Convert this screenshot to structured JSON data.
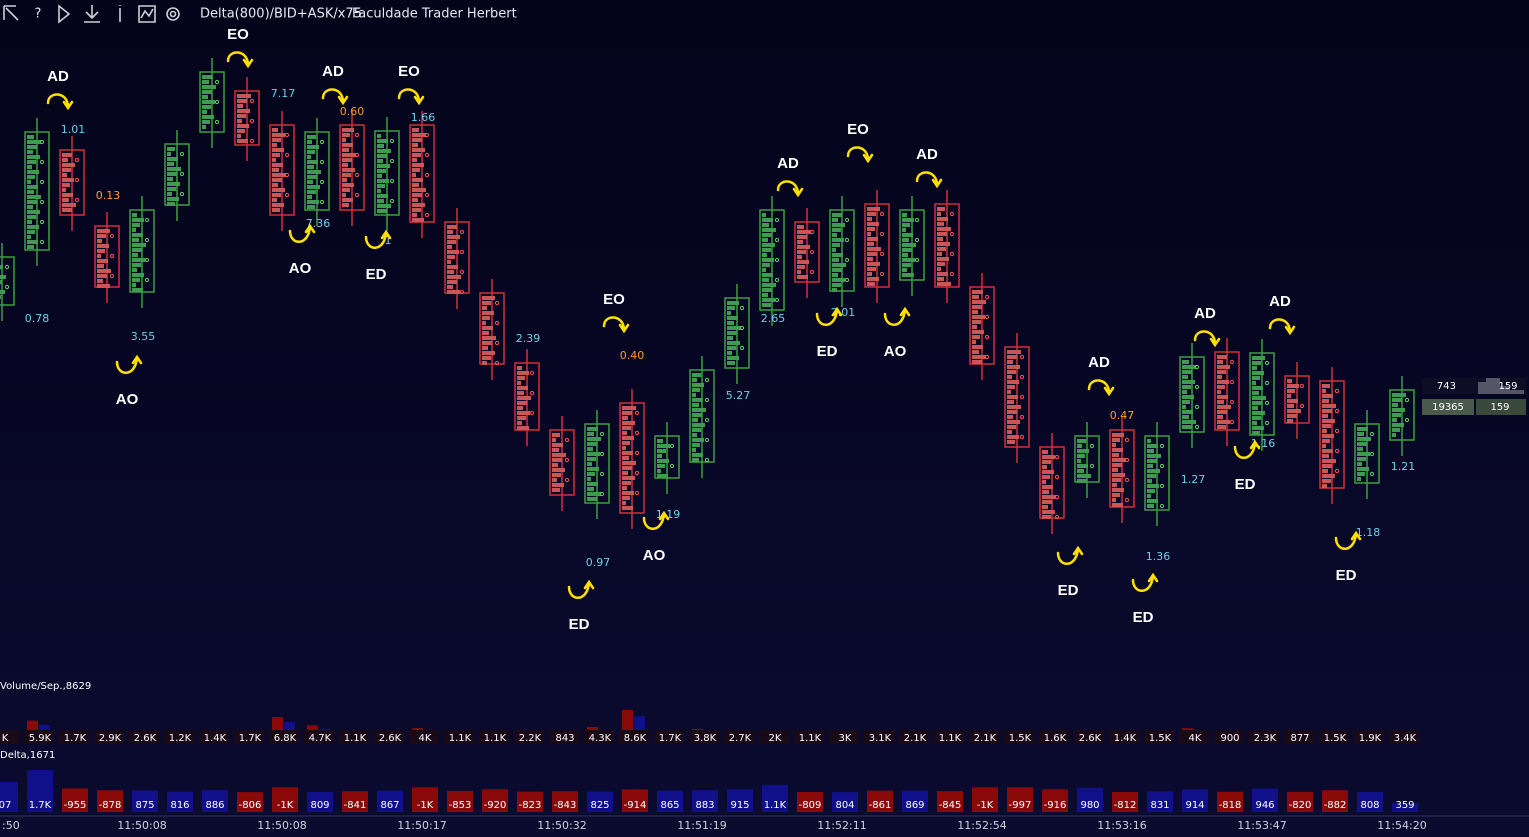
{
  "toolbar": {
    "title": "Delta(800)/BID+ASK/x75",
    "subtitle": "Faculdade Trader Herbert"
  },
  "price_labels": [
    "1.01",
    "0.78",
    "0.13",
    "3.55",
    "7.17",
    "7.36",
    "0.60",
    "1",
    "1.66",
    "2.39",
    "0.97",
    "0.40",
    "1.19",
    "5.27",
    "2.65",
    "2.01",
    "0.47",
    "1.36",
    "1.27",
    "1.16",
    "1.18",
    "1.21"
  ],
  "annotations": [
    "AD",
    "EO",
    "AD",
    "EO",
    "AO",
    "ED",
    "AO",
    "EO",
    "AO",
    "ED",
    "AD",
    "EO",
    "AD",
    "ED",
    "AO",
    "AD",
    "ED",
    "ED",
    "AD",
    "AD",
    "ED",
    "ED"
  ],
  "side_panel": {
    "volume": "743",
    "volume_count": "159",
    "total": "19365",
    "total_count": "159"
  },
  "volume": {
    "label": "Volume/Sep.,8629",
    "items": [
      {
        "label": "K"
      },
      {
        "value": 5900,
        "label": "5.9K"
      },
      {
        "value": 1700,
        "label": "1.7K"
      },
      {
        "value": 2900,
        "label": "2.9K"
      },
      {
        "value": 2600,
        "label": "2.6K"
      },
      {
        "value": 1200,
        "label": "1.2K"
      },
      {
        "value": 1400,
        "label": "1.4K"
      },
      {
        "value": 1700,
        "label": "1.7K"
      },
      {
        "value": 6800,
        "label": "6.8K"
      },
      {
        "value": 4700,
        "label": "4.7K"
      },
      {
        "value": 1100,
        "label": "1.1K"
      },
      {
        "value": 2600,
        "label": "2.6K"
      },
      {
        "value": 4000,
        "label": "4K"
      },
      {
        "value": 1100,
        "label": "1.1K"
      },
      {
        "value": 1100,
        "label": "1.1K"
      },
      {
        "value": 2200,
        "label": "2.2K"
      },
      843,
      {
        "value": 4300,
        "label": "4.3K"
      },
      {
        "value": 8600,
        "label": "8.6K"
      },
      {
        "value": 1700,
        "label": "1.7K"
      },
      {
        "value": 3800,
        "label": "3.8K"
      },
      {
        "value": 2700,
        "label": "2.7K"
      },
      {
        "value": 2000,
        "label": "2K"
      },
      {
        "value": 1100,
        "label": "1.1K"
      },
      {
        "value": 3000,
        "label": "3K"
      },
      {
        "value": 3100,
        "label": "3.1K"
      },
      {
        "value": 2100,
        "label": "2.1K"
      },
      {
        "value": 1100,
        "label": "1.1K"
      },
      {
        "value": 2100,
        "label": "2.1K"
      },
      {
        "value": 1500,
        "label": "1.5K"
      },
      {
        "value": 1600,
        "label": "1.6K"
      },
      {
        "value": 2600,
        "label": "2.6K"
      },
      {
        "value": 1400,
        "label": "1.4K"
      },
      {
        "value": 1500,
        "label": "1.5K"
      },
      {
        "value": 4000,
        "label": "4K"
      },
      900,
      {
        "value": 2300,
        "label": "2.3K"
      },
      877,
      {
        "value": 1500,
        "label": "1.5K"
      },
      {
        "value": 1900,
        "label": "1.9K"
      },
      {
        "value": 3400,
        "label": "3.4K"
      }
    ]
  },
  "delta": {
    "label": "Delta,1671",
    "items": [
      {
        "label": "07"
      },
      {
        "value": 1700,
        "label": "1.7K"
      },
      -955,
      -878,
      875,
      816,
      886,
      -806,
      {
        "value": -1000,
        "label": "-1K"
      },
      809,
      -841,
      867,
      {
        "value": -1000,
        "label": "-1K"
      },
      -853,
      -920,
      -823,
      -843,
      825,
      -914,
      865,
      883,
      915,
      {
        "value": 1100,
        "label": "1.1K"
      },
      -809,
      804,
      -861,
      869,
      -845,
      {
        "value": -1000,
        "label": "-1K"
      },
      -997,
      -916,
      980,
      -812,
      831,
      914,
      -818,
      946,
      -820,
      -882,
      808,
      359
    ]
  },
  "time_labels": [
    ":50",
    "11:50:08",
    "11:50:08",
    "11:50:17",
    "11:50:32",
    "11:51:19",
    "11:52:11",
    "11:52:54",
    "11:53:16",
    "11:53:47",
    "11:54:20"
  ]
}
